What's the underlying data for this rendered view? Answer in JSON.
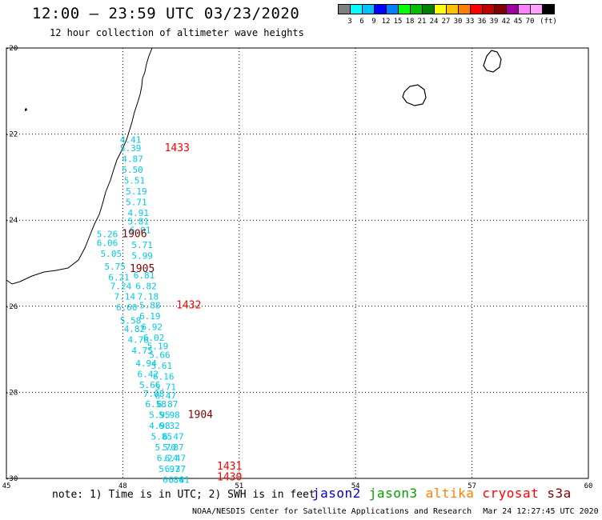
{
  "header": {
    "title": "12:00 — 23:59 UTC 03/23/2020",
    "subtitle": "12 hour collection of altimeter wave heights"
  },
  "colorbar": {
    "colors": [
      "#808080",
      "#00ffff",
      "#00c0ff",
      "#0000ff",
      "#0080ff",
      "#00ff00",
      "#00c000",
      "#008000",
      "#ffff00",
      "#ffc000",
      "#ff8000",
      "#ff0000",
      "#c00000",
      "#800000",
      "#a000a0",
      "#ff80ff",
      "#ffa0ff",
      "#000000"
    ],
    "labels": [
      "3",
      "6",
      "9",
      "12",
      "15",
      "18",
      "21",
      "24",
      "27",
      "30",
      "33",
      "36",
      "39",
      "42",
      "45",
      "70",
      "(ft)"
    ]
  },
  "map": {
    "lat_labels": [
      "-20",
      "-22",
      "-24",
      "-26",
      "-28",
      "-30"
    ],
    "lon_labels": [
      "45",
      "48",
      "51",
      "54",
      "57",
      "60"
    ],
    "wave_heights": [
      {
        "v": "4.41",
        "lat": -22.2,
        "lon": 48.2
      },
      {
        "v": "5.39",
        "lat": -22.4,
        "lon": 48.2
      },
      {
        "v": "4.87",
        "lat": -22.65,
        "lon": 48.25
      },
      {
        "v": "5.50",
        "lat": -22.9,
        "lon": 48.25
      },
      {
        "v": "5.51",
        "lat": -23.15,
        "lon": 48.3
      },
      {
        "v": "5.19",
        "lat": -23.4,
        "lon": 48.35
      },
      {
        "v": "5.71",
        "lat": -23.65,
        "lon": 48.35
      },
      {
        "v": "4.91",
        "lat": -23.9,
        "lon": 48.4
      },
      {
        "v": "5.81",
        "lat": -24.1,
        "lon": 48.4
      },
      {
        "v": "6.01",
        "lat": -24.3,
        "lon": 48.45
      },
      {
        "v": "5.26",
        "lat": -24.4,
        "lon": 47.6
      },
      {
        "v": "6.06",
        "lat": -24.6,
        "lon": 47.6
      },
      {
        "v": "5.71",
        "lat": -24.65,
        "lon": 48.5
      },
      {
        "v": "5.05",
        "lat": -24.85,
        "lon": 47.7
      },
      {
        "v": "5.99",
        "lat": -24.9,
        "lon": 48.5
      },
      {
        "v": "5.75",
        "lat": -25.15,
        "lon": 47.8
      },
      {
        "v": "6.21",
        "lat": -25.4,
        "lon": 47.9
      },
      {
        "v": "6.81",
        "lat": -25.35,
        "lon": 48.55
      },
      {
        "v": "7.24",
        "lat": -25.6,
        "lon": 47.95
      },
      {
        "v": "6.82",
        "lat": -25.6,
        "lon": 48.6
      },
      {
        "v": "7.14",
        "lat": -25.85,
        "lon": 48.05
      },
      {
        "v": "7.18",
        "lat": -25.85,
        "lon": 48.65
      },
      {
        "v": "6.60",
        "lat": -26.1,
        "lon": 48.1
      },
      {
        "v": "5.88",
        "lat": -26.05,
        "lon": 48.7
      },
      {
        "v": "6.19",
        "lat": -26.3,
        "lon": 48.7
      },
      {
        "v": "5.58",
        "lat": -26.4,
        "lon": 48.2
      },
      {
        "v": "6.92",
        "lat": -26.55,
        "lon": 48.75
      },
      {
        "v": "4.82",
        "lat": -26.6,
        "lon": 48.3
      },
      {
        "v": "6.02",
        "lat": -26.8,
        "lon": 48.8
      },
      {
        "v": "4.78",
        "lat": -26.85,
        "lon": 48.4
      },
      {
        "v": "5.19",
        "lat": -27.0,
        "lon": 48.9
      },
      {
        "v": "4.75",
        "lat": -27.1,
        "lon": 48.5
      },
      {
        "v": "5.66",
        "lat": -27.2,
        "lon": 48.95
      },
      {
        "v": "4.94",
        "lat": -27.4,
        "lon": 48.6
      },
      {
        "v": "5.61",
        "lat": -27.45,
        "lon": 49.0
      },
      {
        "v": "6.42",
        "lat": -27.65,
        "lon": 48.65
      },
      {
        "v": "6.16",
        "lat": -27.7,
        "lon": 49.05
      },
      {
        "v": "5.66",
        "lat": -27.9,
        "lon": 48.7
      },
      {
        "v": "5.71",
        "lat": -27.95,
        "lon": 49.1
      },
      {
        "v": "7.08",
        "lat": -28.1,
        "lon": 48.8
      },
      {
        "v": "6.47",
        "lat": -28.15,
        "lon": 49.1
      },
      {
        "v": "6.58",
        "lat": -28.35,
        "lon": 48.85
      },
      {
        "v": "6.87",
        "lat": -28.35,
        "lon": 49.15
      },
      {
        "v": "5.95",
        "lat": -28.6,
        "lon": 48.95
      },
      {
        "v": "5.98",
        "lat": -28.6,
        "lon": 49.2
      },
      {
        "v": "4.98",
        "lat": -28.85,
        "lon": 48.95
      },
      {
        "v": "6.32",
        "lat": -28.85,
        "lon": 49.2
      },
      {
        "v": "5.85",
        "lat": -29.1,
        "lon": 49.0
      },
      {
        "v": "6.47",
        "lat": -29.1,
        "lon": 49.3
      },
      {
        "v": "5.70",
        "lat": -29.35,
        "lon": 49.1
      },
      {
        "v": "5.87",
        "lat": -29.35,
        "lon": 49.3
      },
      {
        "v": "6.24",
        "lat": -29.6,
        "lon": 49.15
      },
      {
        "v": "6.47",
        "lat": -29.6,
        "lon": 49.35
      },
      {
        "v": "5.97",
        "lat": -29.85,
        "lon": 49.2
      },
      {
        "v": "6.37",
        "lat": -29.85,
        "lon": 49.35
      },
      {
        "v": "6.84",
        "lat": -30.1,
        "lon": 49.3
      },
      {
        "v": "6.81",
        "lat": -30.1,
        "lon": 49.45
      }
    ],
    "pass_times": [
      {
        "t": "1433",
        "lat": -22.4,
        "lon": 49.4,
        "color": "#ff0000"
      },
      {
        "t": "1906",
        "lat": -24.4,
        "lon": 48.3,
        "color": "#800000"
      },
      {
        "t": "1905",
        "lat": -25.2,
        "lon": 48.5,
        "color": "#800000"
      },
      {
        "t": "1432",
        "lat": -26.05,
        "lon": 49.7,
        "color": "#ff0000"
      },
      {
        "t": "1904",
        "lat": -28.6,
        "lon": 50.0,
        "color": "#800000"
      },
      {
        "t": "1431",
        "lat": -29.8,
        "lon": 50.75,
        "color": "#ff0000"
      },
      {
        "t": "1430",
        "lat": -30.05,
        "lon": 50.75,
        "color": "#ff0000"
      }
    ]
  },
  "footer": {
    "note": "note: 1) Time is in UTC; 2) SWH is in feet",
    "satellites": [
      {
        "name": "jason2",
        "color": "#0000c0"
      },
      {
        "name": "jason3",
        "color": "#00a000"
      },
      {
        "name": "altika",
        "color": "#ff8000"
      },
      {
        "name": "cryosat",
        "color": "#ff0000"
      },
      {
        "name": "s3a",
        "color": "#800000"
      }
    ],
    "credit": "NOAA/NESDIS Center for Satellite Applications and Research",
    "timestamp": "Mar 24 12:27:45 UTC 2020"
  }
}
